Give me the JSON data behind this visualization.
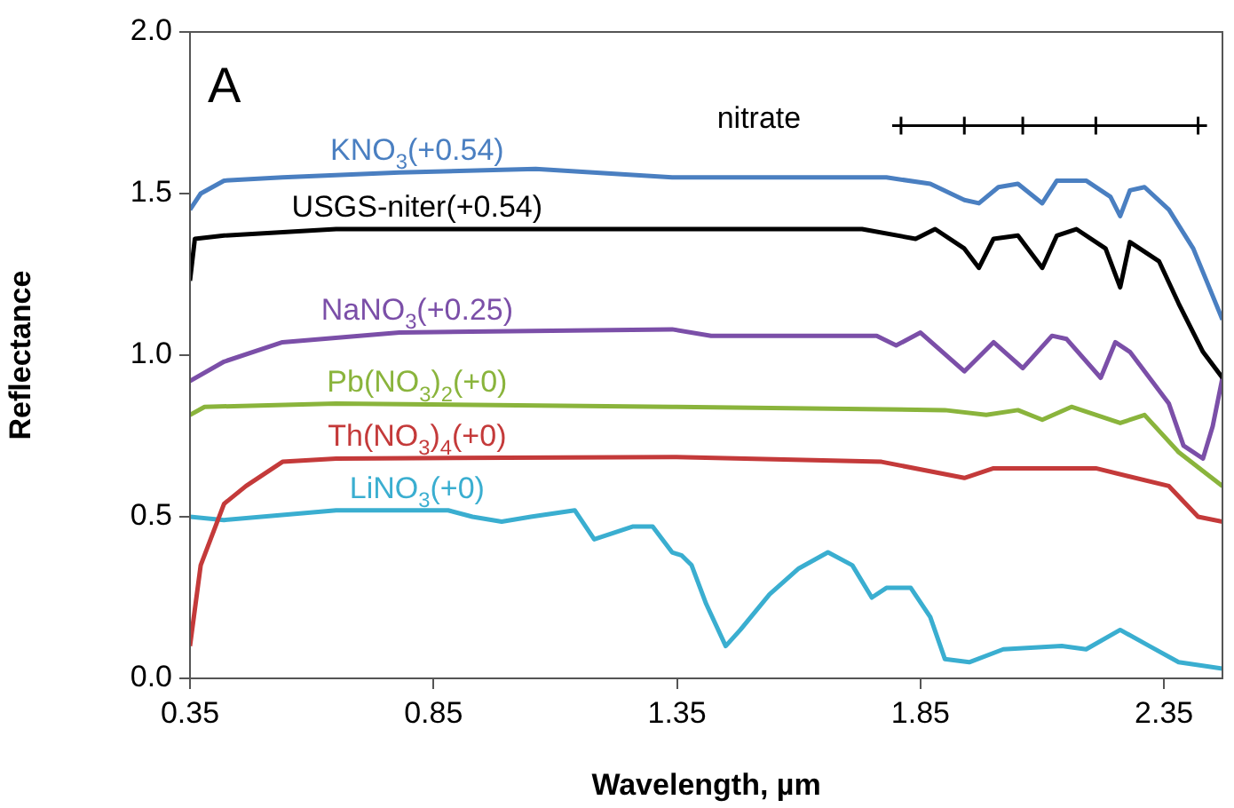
{
  "chart_data": {
    "type": "line",
    "xlabel": "Wavelength, µm",
    "ylabel": "Reflectance",
    "xlim": [
      0.35,
      2.47
    ],
    "xticks": [
      0.35,
      0.85,
      1.35,
      1.85,
      2.35
    ],
    "ylim": [
      0,
      2
    ],
    "yticks": [
      {
        "value": 0,
        "label": "0.0"
      },
      {
        "value": 0.5,
        "label": "0.5"
      },
      {
        "value": 1,
        "label": "1.0"
      },
      {
        "value": 1.5,
        "label": "1.5"
      },
      {
        "value": 2,
        "label": "2.0"
      }
    ],
    "grid": false,
    "legend": false,
    "marker": "none",
    "annotations": [
      "A",
      "nitrate"
    ],
    "series": [
      {
        "name": "KNO$_{3}$(+0.54)",
        "color": "#4a7fc1",
        "x": [
          0.35,
          0.372,
          0.42,
          0.54,
          0.78,
          1.06,
          1.34,
          1.42,
          1.78,
          1.87,
          1.94,
          1.97,
          2.01,
          2.05,
          2.1,
          2.13,
          2.19,
          2.24,
          2.26,
          2.28,
          2.31,
          2.36,
          2.41,
          2.44,
          2.47
        ],
        "values": [
          1.45,
          1.5,
          1.54,
          1.55,
          1.565,
          1.576,
          1.55,
          1.55,
          1.55,
          1.53,
          1.48,
          1.47,
          1.52,
          1.53,
          1.47,
          1.54,
          1.54,
          1.49,
          1.43,
          1.51,
          1.52,
          1.45,
          1.33,
          1.22,
          1.11
        ]
      },
      {
        "name": "USGS-niter(+0.54)",
        "color": "#000000",
        "x": [
          0.35,
          0.36,
          0.42,
          0.65,
          1.34,
          1.73,
          1.84,
          1.88,
          1.94,
          1.97,
          2.0,
          2.05,
          2.1,
          2.13,
          2.17,
          2.23,
          2.26,
          2.28,
          2.34,
          2.38,
          2.43,
          2.47
        ],
        "values": [
          1.23,
          1.36,
          1.37,
          1.39,
          1.39,
          1.39,
          1.36,
          1.39,
          1.33,
          1.27,
          1.36,
          1.37,
          1.27,
          1.37,
          1.39,
          1.33,
          1.21,
          1.35,
          1.29,
          1.16,
          1.01,
          0.93
        ]
      },
      {
        "name": "NaNO$_{3}$(+0.25)",
        "color": "#7b4fa8",
        "x": [
          0.35,
          0.42,
          0.54,
          0.78,
          1.34,
          1.42,
          1.76,
          1.8,
          1.85,
          1.94,
          2.0,
          2.06,
          2.12,
          2.15,
          2.22,
          2.25,
          2.28,
          2.36,
          2.39,
          2.43,
          2.45,
          2.47
        ],
        "values": [
          0.92,
          0.98,
          1.04,
          1.07,
          1.08,
          1.06,
          1.06,
          1.03,
          1.07,
          0.95,
          1.04,
          0.96,
          1.06,
          1.05,
          0.93,
          1.04,
          1.01,
          0.85,
          0.72,
          0.68,
          0.78,
          0.93
        ]
      },
      {
        "name": "Pb(NO$_{3}$)$_{2}$(+0)",
        "color": "#8ab43c",
        "x": [
          0.35,
          0.38,
          0.65,
          1.34,
          1.9,
          1.985,
          2.05,
          2.1,
          2.16,
          2.26,
          2.31,
          2.38,
          2.44,
          2.47
        ],
        "values": [
          0.815,
          0.84,
          0.85,
          0.84,
          0.83,
          0.815,
          0.83,
          0.8,
          0.84,
          0.79,
          0.815,
          0.7,
          0.63,
          0.595
        ]
      },
      {
        "name": "Th(NO$_{3}$)$_{4}$(+0)",
        "color": "#c43a3a",
        "x": [
          0.35,
          0.372,
          0.42,
          0.465,
          0.54,
          0.65,
          1.34,
          1.77,
          1.94,
          2.0,
          2.21,
          2.36,
          2.42,
          2.47
        ],
        "values": [
          0.1,
          0.35,
          0.54,
          0.595,
          0.67,
          0.68,
          0.685,
          0.67,
          0.62,
          0.65,
          0.65,
          0.595,
          0.5,
          0.485
        ]
      },
      {
        "name": "LiNO$_{3}$(+0)",
        "color": "#3aaed0",
        "x": [
          0.35,
          0.42,
          0.65,
          0.88,
          0.93,
          0.99,
          1.05,
          1.14,
          1.18,
          1.26,
          1.3,
          1.34,
          1.36,
          1.38,
          1.41,
          1.45,
          1.48,
          1.54,
          1.6,
          1.66,
          1.71,
          1.75,
          1.78,
          1.83,
          1.87,
          1.9,
          1.95,
          2.02,
          2.14,
          2.19,
          2.26,
          2.32,
          2.38,
          2.47
        ],
        "values": [
          0.5,
          0.49,
          0.52,
          0.52,
          0.5,
          0.485,
          0.5,
          0.52,
          0.43,
          0.47,
          0.47,
          0.39,
          0.38,
          0.35,
          0.23,
          0.1,
          0.15,
          0.26,
          0.34,
          0.39,
          0.35,
          0.25,
          0.28,
          0.28,
          0.19,
          0.06,
          0.05,
          0.09,
          0.1,
          0.09,
          0.15,
          0.1,
          0.05,
          0.03
        ]
      },
      {
        "color": "#000000",
        "marker": "cross",
        "x": [
          1.81,
          1.94,
          2.06,
          2.21,
          2.42
        ],
        "values": [
          1.71,
          1.71,
          1.71,
          1.71,
          1.71
        ]
      }
    ]
  }
}
